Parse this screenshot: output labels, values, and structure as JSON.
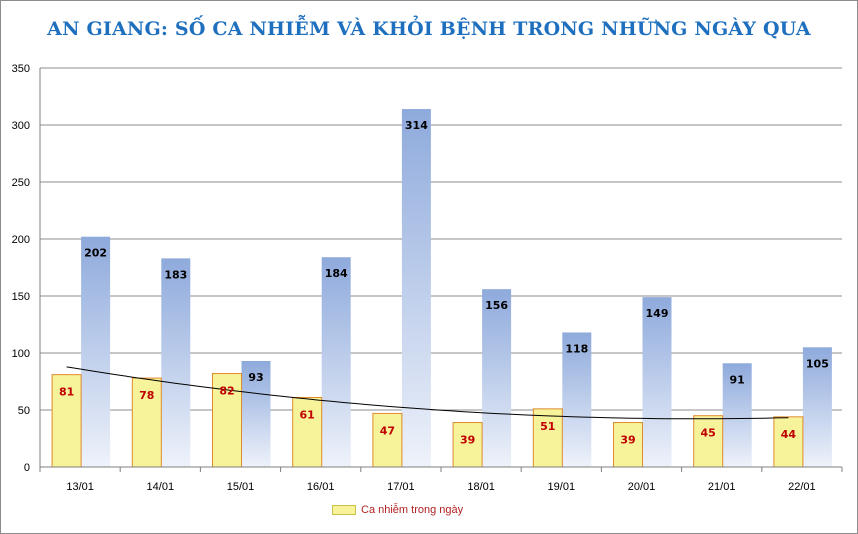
{
  "title": "AN GIANG: SỐ CA NHIỄM VÀ KHỎI BỆNH TRONG NHỮNG NGÀY QUA",
  "legend": {
    "label": "Ca nhiễm trong ngày"
  },
  "colors": {
    "title": "#1f6fbf",
    "infected_fill": "#f7f39a",
    "infected_border": "#e08a2c",
    "infected_label": "#c00000",
    "recovered_top": "#8eaadc",
    "recovered_bottom": "#eef2fa",
    "recovered_label": "#000000",
    "trendline": "#000000",
    "grid": "#8c8c8c"
  },
  "chart_data": {
    "type": "bar",
    "title": "AN GIANG: SỐ CA NHIỄM VÀ KHỎI BỆNH TRONG NHỮNG NGÀY QUA",
    "categories": [
      "13/01",
      "14/01",
      "15/01",
      "16/01",
      "17/01",
      "18/01",
      "19/01",
      "20/01",
      "21/01",
      "22/01"
    ],
    "series": [
      {
        "name": "Ca nhiễm trong ngày",
        "values": [
          81,
          78,
          82,
          61,
          47,
          39,
          51,
          39,
          45,
          44
        ]
      },
      {
        "values": [
          202,
          183,
          93,
          184,
          314,
          156,
          118,
          149,
          91,
          105
        ]
      }
    ],
    "trendline": {
      "series": 0,
      "kind": "polynomial"
    },
    "ylim": [
      0,
      350
    ],
    "yticks": [
      0,
      50,
      100,
      150,
      200,
      250,
      300,
      350
    ],
    "grid": true,
    "legend_position": "bottom-left"
  }
}
